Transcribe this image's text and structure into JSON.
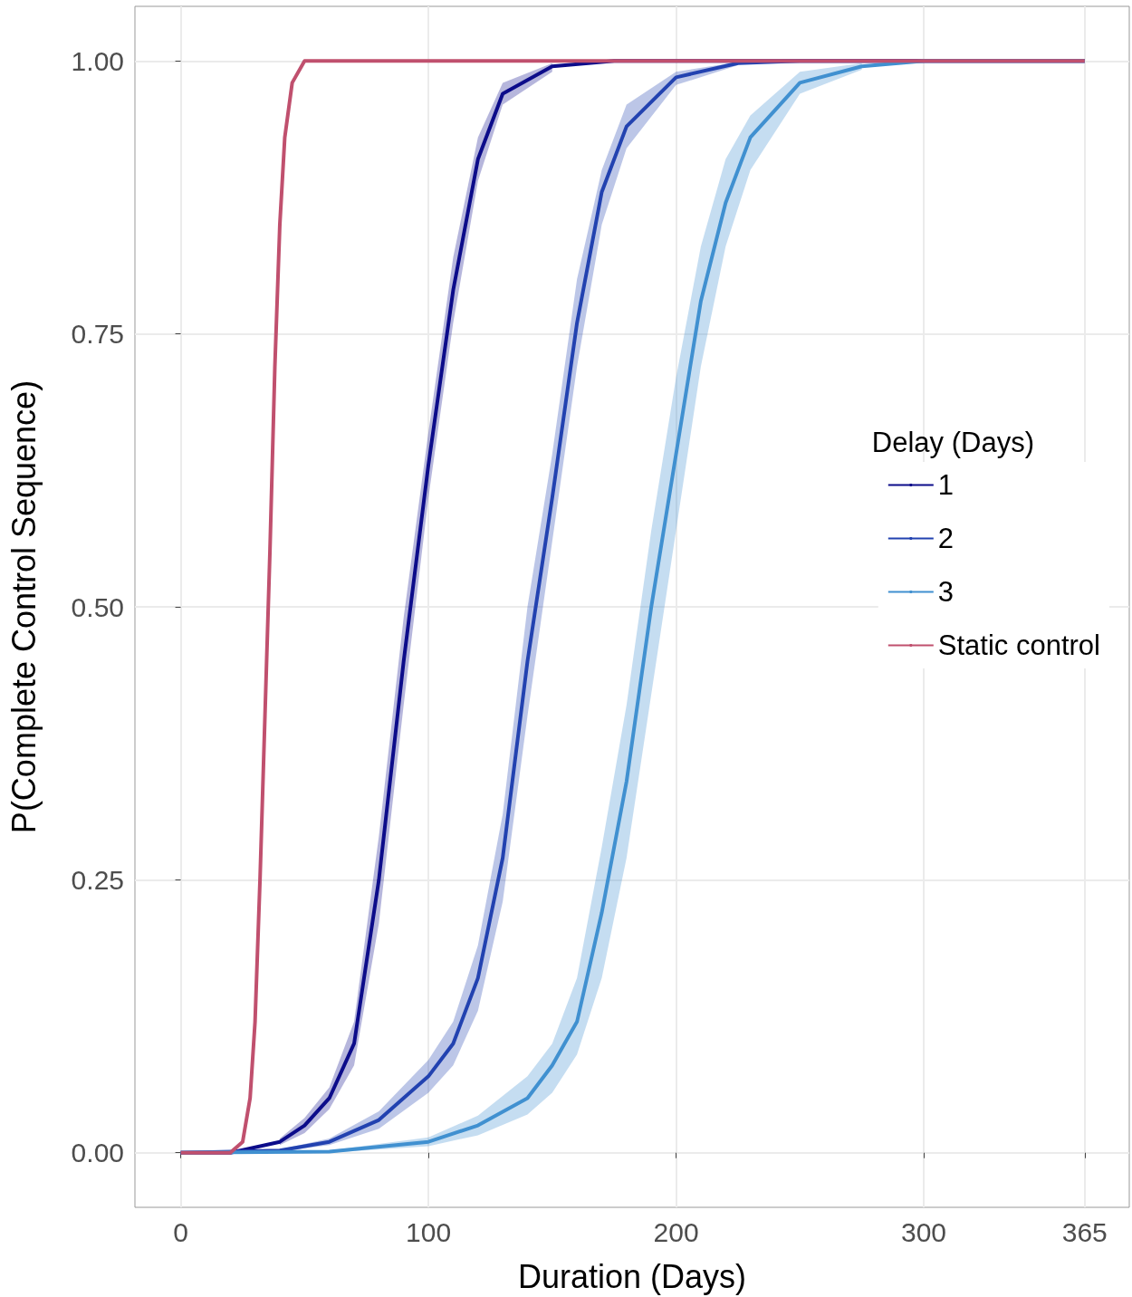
{
  "chart_data": {
    "type": "line",
    "xlabel": "Duration (Days)",
    "ylabel": "P(Complete Control Sequence)",
    "legend_title": "Delay (Days)",
    "xlim": [
      -18.5,
      383
    ],
    "xticks": [
      0,
      100,
      200,
      300,
      365
    ],
    "ylim": [
      -0.05,
      1.05
    ],
    "yticks": [
      {
        "value": 0,
        "label": "0.00"
      },
      {
        "value": 0.25,
        "label": "0.25"
      },
      {
        "value": 0.5,
        "label": "0.50"
      },
      {
        "value": 0.75,
        "label": "0.75"
      },
      {
        "value": 1,
        "label": "1.00"
      }
    ],
    "grid": true,
    "legend": "right",
    "series": [
      {
        "name": "1",
        "color": "#0c0c8a",
        "x": [
          0,
          20,
          40,
          50,
          60,
          70,
          80,
          90,
          100,
          110,
          120,
          130,
          150,
          175,
          365
        ],
        "values": [
          0,
          0,
          0.01,
          0.025,
          0.05,
          0.1,
          0.25,
          0.45,
          0.63,
          0.79,
          0.91,
          0.97,
          0.995,
          1,
          1
        ],
        "lower": [
          null,
          null,
          0.007,
          0.018,
          0.04,
          0.08,
          0.21,
          0.41,
          0.6,
          0.76,
          0.89,
          0.96,
          0.99,
          null,
          null
        ],
        "upper": [
          null,
          null,
          0.013,
          0.032,
          0.06,
          0.12,
          0.29,
          0.49,
          0.66,
          0.82,
          0.93,
          0.98,
          0.998,
          null,
          null
        ]
      },
      {
        "name": "2",
        "color": "#2242b0",
        "x": [
          0,
          40,
          60,
          80,
          100,
          110,
          120,
          130,
          140,
          150,
          160,
          170,
          180,
          200,
          225,
          250,
          365
        ],
        "values": [
          0,
          0.002,
          0.01,
          0.03,
          0.07,
          0.1,
          0.16,
          0.27,
          0.45,
          0.6,
          0.76,
          0.88,
          0.94,
          0.985,
          0.998,
          1,
          1
        ],
        "lower": [
          null,
          0.001,
          0.007,
          0.022,
          0.055,
          0.08,
          0.13,
          0.23,
          0.4,
          0.56,
          0.72,
          0.85,
          0.92,
          0.978,
          0.996,
          null,
          null
        ],
        "upper": [
          null,
          0.003,
          0.013,
          0.038,
          0.085,
          0.12,
          0.19,
          0.31,
          0.5,
          0.64,
          0.8,
          0.9,
          0.96,
          0.99,
          0.999,
          null,
          null
        ]
      },
      {
        "name": "3",
        "color": "#4090d0",
        "x": [
          0,
          60,
          100,
          120,
          140,
          150,
          160,
          170,
          180,
          190,
          200,
          210,
          220,
          230,
          250,
          275,
          300,
          365
        ],
        "values": [
          0,
          0.001,
          0.01,
          0.025,
          0.05,
          0.08,
          0.12,
          0.22,
          0.34,
          0.5,
          0.64,
          0.78,
          0.87,
          0.93,
          0.98,
          0.995,
          1,
          1
        ],
        "lower": [
          null,
          0,
          0.006,
          0.016,
          0.035,
          0.055,
          0.09,
          0.16,
          0.27,
          0.42,
          0.57,
          0.72,
          0.83,
          0.9,
          0.97,
          0.992,
          null,
          null
        ],
        "upper": [
          null,
          0.002,
          0.014,
          0.034,
          0.07,
          0.1,
          0.16,
          0.28,
          0.41,
          0.57,
          0.71,
          0.83,
          0.91,
          0.95,
          0.99,
          0.998,
          null,
          null
        ]
      },
      {
        "name": "Static control",
        "color": "#c0506e",
        "x": [
          0,
          20,
          25,
          28,
          30,
          32,
          34,
          36,
          38,
          40,
          42,
          45,
          50,
          55,
          365
        ],
        "values": [
          0,
          0,
          0.01,
          0.05,
          0.12,
          0.25,
          0.4,
          0.55,
          0.72,
          0.85,
          0.93,
          0.98,
          1,
          1,
          1
        ]
      }
    ]
  }
}
